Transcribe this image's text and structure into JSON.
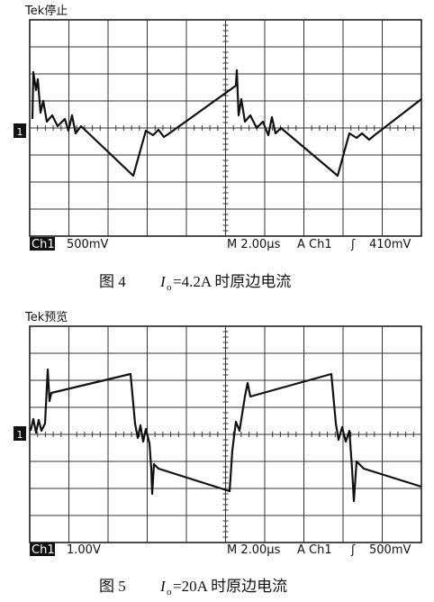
{
  "figures": [
    {
      "status": "Tek停止",
      "marker": "1",
      "channel": "Ch1",
      "scale": "500mV",
      "timebase": "M 2.00µs",
      "trigger_source": "A Ch1",
      "trigger_slope": "ʃ",
      "trigger_level": "410mV",
      "caption": {
        "label": "图 4",
        "symbol": "I",
        "subscript": "o",
        "text": "=4.2A 时原边电流"
      }
    },
    {
      "status": "Tek预览",
      "marker": "1",
      "channel": "Ch1",
      "scale": "1.00V",
      "timebase": "M 2.00µs",
      "trigger_source": "A Ch1",
      "trigger_slope": "ʃ",
      "trigger_level": "500mV",
      "caption": {
        "label": "图 5",
        "symbol": "I",
        "subscript": "o",
        "text": "=20A 时原边电流"
      }
    }
  ]
}
